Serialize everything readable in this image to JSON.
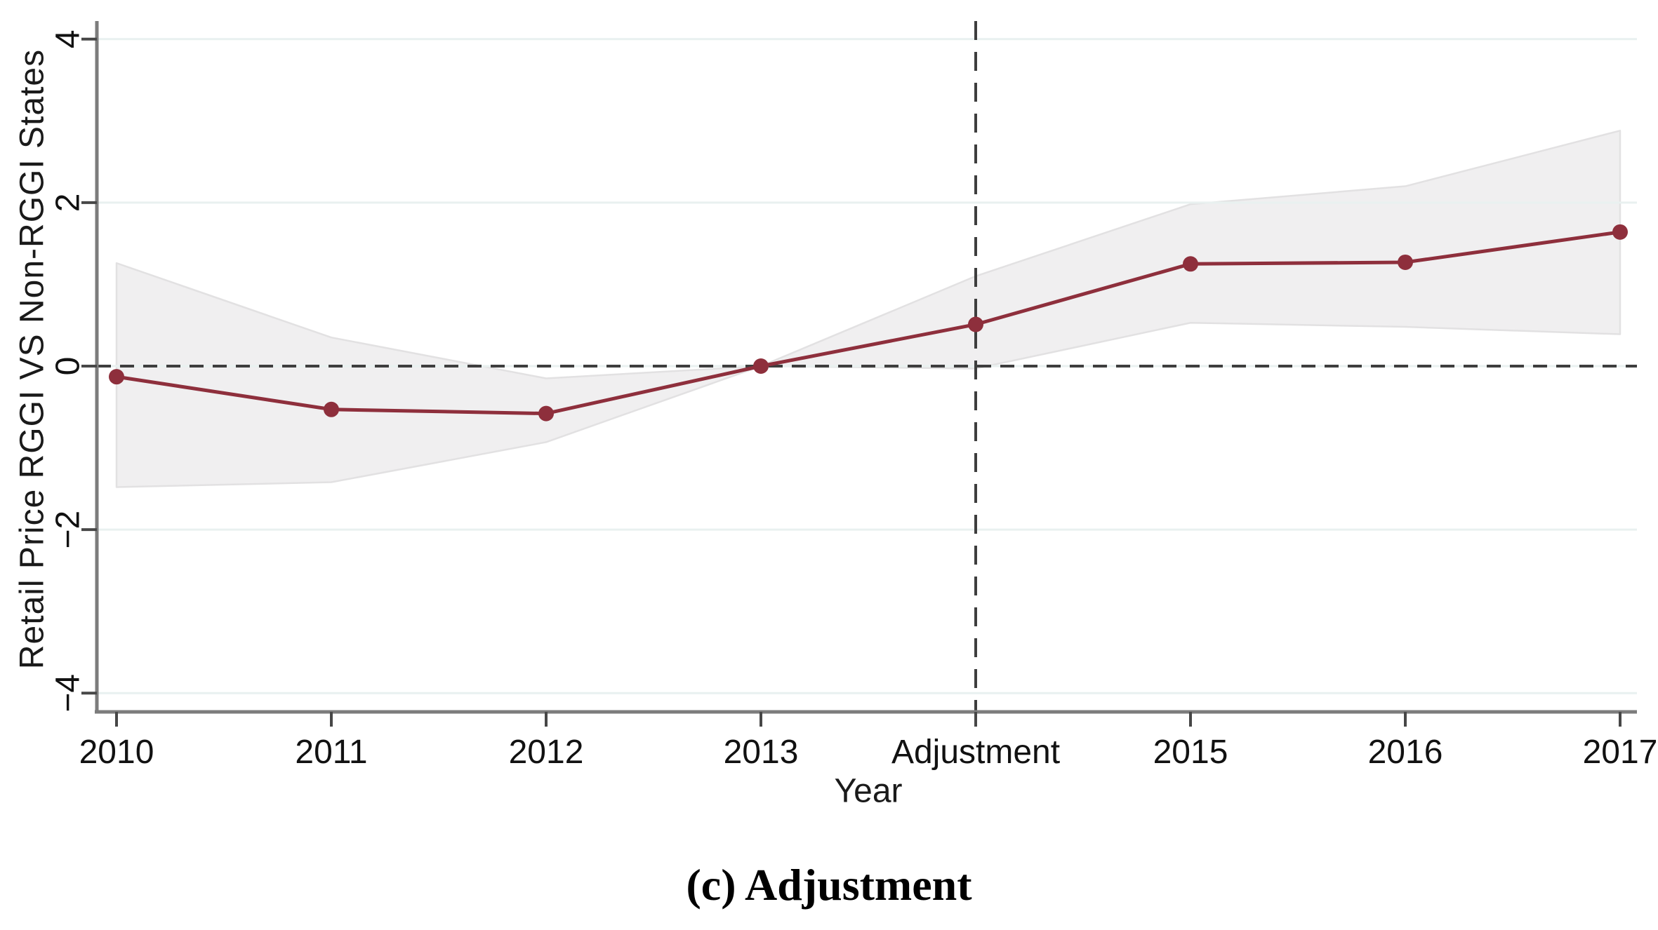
{
  "figure": {
    "caption": "(c) Adjustment"
  },
  "chart_data": {
    "type": "line",
    "title": "",
    "xlabel": "Year",
    "ylabel": "Retail Price RGGI VS Non-RGGI States",
    "categories": [
      "2010",
      "2011",
      "2012",
      "2013",
      "Adjustment",
      "2015",
      "2016",
      "2017"
    ],
    "y_ticks": [
      4,
      2,
      0,
      -2,
      -4
    ],
    "y_tick_labels": [
      "4",
      "2",
      "0",
      "−2",
      "−4"
    ],
    "ylim": [
      -4.35,
      4.35
    ],
    "grid": true,
    "legend": "none",
    "reference_lines": {
      "horizontal_at_y": 0,
      "vertical_at_category": "Adjustment"
    },
    "series": [
      {
        "name": "coefficient",
        "values": [
          -0.13,
          -0.53,
          -0.58,
          0.0,
          0.51,
          1.25,
          1.27,
          1.64
        ]
      },
      {
        "name": "ci_upper",
        "values": [
          1.26,
          0.35,
          -0.15,
          0.0,
          1.1,
          1.98,
          2.2,
          2.88
        ]
      },
      {
        "name": "ci_lower",
        "values": [
          -1.48,
          -1.42,
          -0.93,
          0.0,
          -0.03,
          0.53,
          0.48,
          0.39
        ]
      }
    ],
    "colors": {
      "line": "#8e2f3c",
      "marker": "#8e2f3c",
      "band_fill": "#f0eff0",
      "band_edge": "#e2e1e2",
      "gridline": "#e9f1f0",
      "dashed_reference": "#3e3e3e",
      "axis": "#7c7c7c",
      "tick": "#474747",
      "text": "#111111"
    }
  }
}
